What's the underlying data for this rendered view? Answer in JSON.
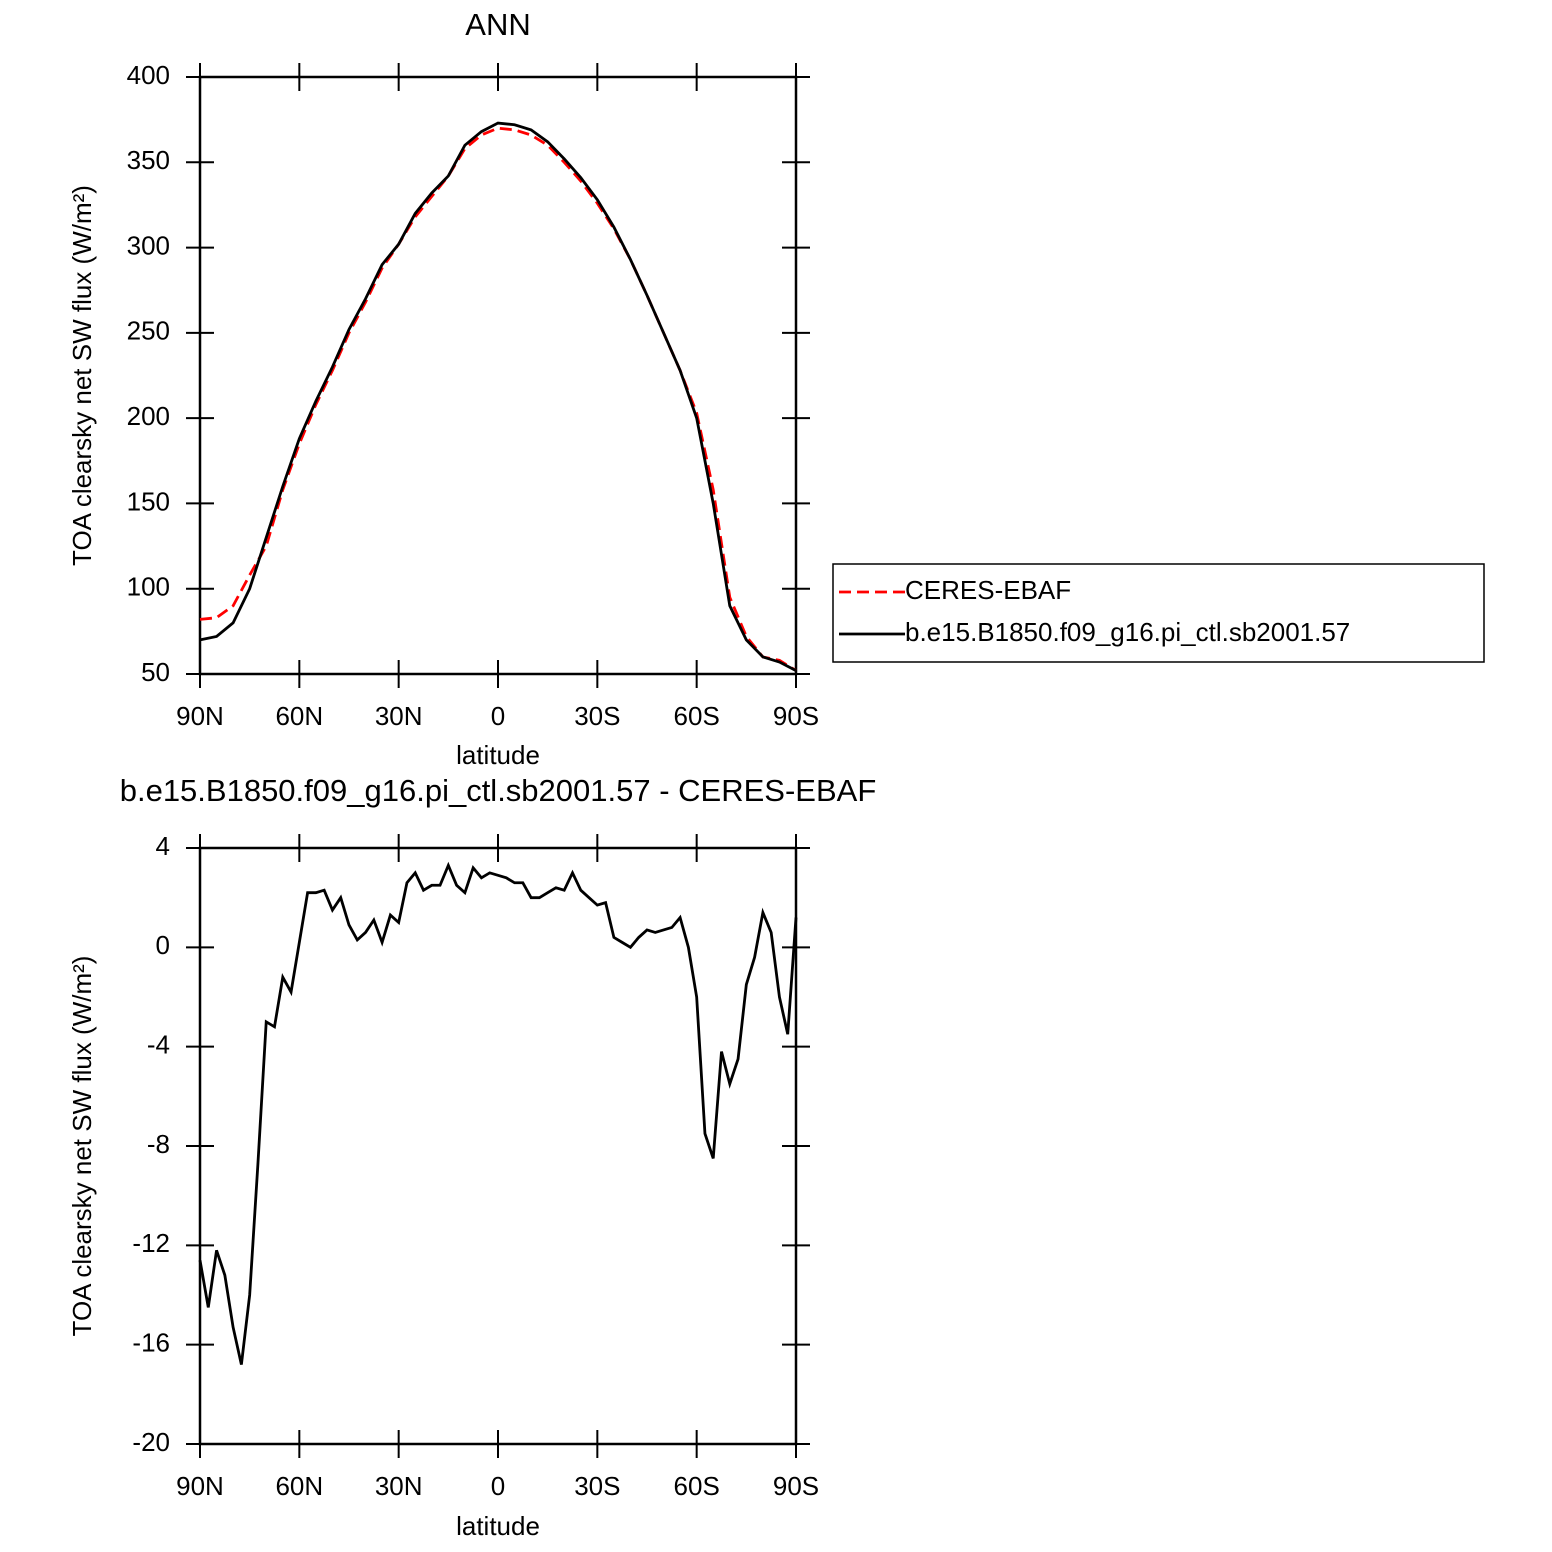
{
  "chart_data": [
    {
      "type": "line",
      "title": "ANN",
      "xlabel": "latitude",
      "ylabel": "TOA clearsky net SW flux (W/m²)",
      "x": [
        90,
        85,
        80,
        75,
        70,
        65,
        60,
        55,
        50,
        45,
        40,
        35,
        30,
        25,
        20,
        15,
        10,
        5,
        0,
        -5,
        -10,
        -15,
        -20,
        -25,
        -30,
        -35,
        -40,
        -45,
        -50,
        -55,
        -60,
        -65,
        -70,
        -75,
        -80,
        -85,
        -90
      ],
      "series": [
        {
          "name": "CERES-EBAF",
          "color": "#ff0000",
          "linestyle": "dashed",
          "values": [
            82,
            83,
            90,
            108,
            125,
            158,
            185,
            208,
            228,
            250,
            268,
            288,
            302,
            318,
            330,
            342,
            358,
            366,
            370,
            369,
            366,
            360,
            350,
            339,
            326,
            311,
            293,
            272,
            250,
            228,
            203,
            158,
            95,
            72,
            60,
            58,
            52
          ]
        },
        {
          "name": "b.e15.B1850.f09_g16.pi_ctl.sb2001.57",
          "color": "#000000",
          "linestyle": "solid",
          "values": [
            70,
            72,
            80,
            100,
            130,
            160,
            188,
            210,
            230,
            252,
            270,
            290,
            302,
            320,
            332,
            342,
            360,
            368,
            373,
            372,
            369,
            362,
            352,
            341,
            328,
            312,
            293,
            272,
            250,
            228,
            200,
            150,
            90,
            70,
            60,
            57,
            52
          ]
        }
      ],
      "xlim": [
        90,
        -90
      ],
      "xticks": [
        {
          "value": 90,
          "label": "90N"
        },
        {
          "value": 60,
          "label": "60N"
        },
        {
          "value": 30,
          "label": "30N"
        },
        0,
        {
          "value": -30,
          "label": "30S"
        },
        {
          "value": -60,
          "label": "60S"
        },
        {
          "value": -90,
          "label": "90S"
        }
      ],
      "ylim": [
        50,
        400
      ],
      "yticks": [
        50,
        100,
        150,
        200,
        250,
        300,
        350,
        400
      ],
      "grid": false,
      "legend": "right"
    },
    {
      "type": "line",
      "title": "b.e15.B1850.f09_g16.pi_ctl.sb2001.57 - CERES-EBAF",
      "xlabel": "latitude",
      "ylabel": "TOA clearsky net SW flux (W/m²)",
      "x": [
        90,
        87.5,
        85,
        82.5,
        80,
        77.5,
        75,
        72.5,
        70,
        67.5,
        65,
        62.5,
        60,
        57.5,
        55,
        52.5,
        50,
        47.5,
        45,
        42.5,
        40,
        37.5,
        35,
        32.5,
        30,
        27.5,
        25,
        22.5,
        20,
        17.5,
        15,
        12.5,
        10,
        7.5,
        5,
        2.5,
        0,
        -2.5,
        -5,
        -7.5,
        -10,
        -12.5,
        -15,
        -17.5,
        -20,
        -22.5,
        -25,
        -27.5,
        -30,
        -32.5,
        -35,
        -37.5,
        -40,
        -42.5,
        -45,
        -47.5,
        -50,
        -52.5,
        -55,
        -57.5,
        -60,
        -62.5,
        -65,
        -67.5,
        -70,
        -72.5,
        -75,
        -77.5,
        -80,
        -82.5,
        -85,
        -87.5,
        -90
      ],
      "series": [
        {
          "name": "b.e15.B1850.f09_g16.pi_ctl.sb2001.57 - CERES-EBAF",
          "color": "#000000",
          "linestyle": "solid",
          "values": [
            -12.6,
            -14.5,
            -12.2,
            -13.2,
            -15.3,
            -16.8,
            -14,
            -8.7,
            -3.0,
            -3.2,
            -1.2,
            -1.8,
            0.2,
            2.2,
            2.2,
            2.3,
            1.5,
            2.0,
            0.9,
            0.3,
            0.6,
            1.1,
            0.2,
            1.3,
            1.0,
            2.6,
            3.0,
            2.3,
            2.5,
            2.5,
            3.3,
            2.5,
            2.2,
            3.2,
            2.8,
            3.0,
            2.9,
            2.8,
            2.6,
            2.6,
            2.0,
            2.0,
            2.2,
            2.4,
            2.3,
            3.0,
            2.3,
            2.0,
            1.7,
            1.8,
            0.4,
            0.2,
            0.0,
            0.4,
            0.7,
            0.6,
            0.7,
            0.8,
            1.2,
            0.0,
            -2.0,
            -7.5,
            -8.5,
            -4.2,
            -5.5,
            -4.5,
            -1.5,
            -0.4,
            1.4,
            0.6,
            -2.0,
            -3.5,
            1.2
          ]
        }
      ],
      "xlim": [
        90,
        -90
      ],
      "xticks": [
        {
          "value": 90,
          "label": "90N"
        },
        {
          "value": 60,
          "label": "60N"
        },
        {
          "value": 30,
          "label": "30N"
        },
        0,
        {
          "value": -30,
          "label": "30S"
        },
        {
          "value": -60,
          "label": "60S"
        },
        {
          "value": -90,
          "label": "90S"
        }
      ],
      "ylim": [
        -20,
        4
      ],
      "yticks": [
        -20,
        -16,
        -12,
        -8,
        -4,
        0,
        4
      ],
      "grid": false
    }
  ]
}
